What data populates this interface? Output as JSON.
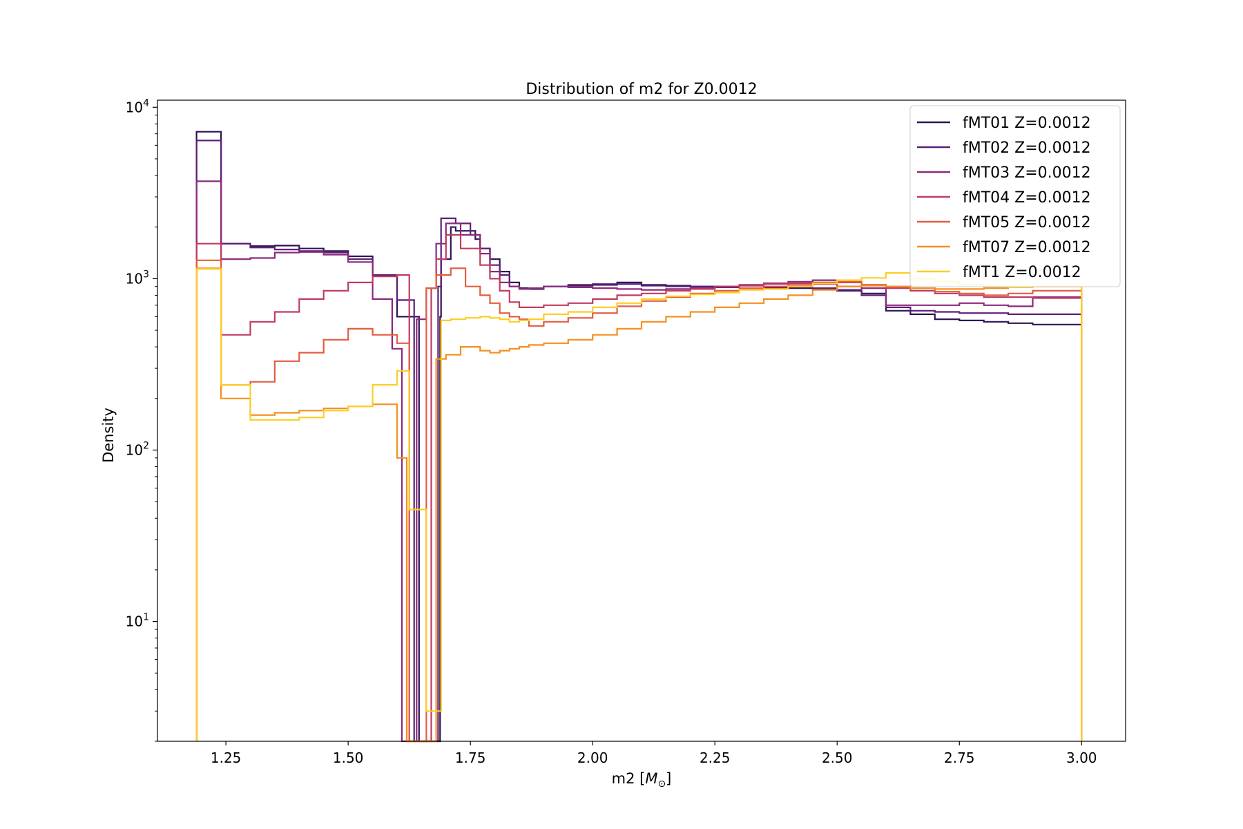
{
  "chart_data": {
    "type": "step-histogram",
    "title": "Distribution of m2 for Z0.0012",
    "xlabel": "m2 [",
    "xlabel_symbol": "M",
    "xlabel_subscript": "⊙",
    "xlabel_close": "]",
    "ylabel": "Density",
    "yscale": "log",
    "xlim": [
      1.11,
      3.09
    ],
    "ylim": [
      2,
      11000
    ],
    "x_ticks": [
      1.25,
      1.5,
      1.75,
      2.0,
      2.25,
      2.5,
      2.75,
      3.0
    ],
    "x_tick_labels": [
      "1.25",
      "1.50",
      "1.75",
      "2.00",
      "2.25",
      "2.50",
      "2.75",
      "3.00"
    ],
    "y_ticks": [
      10,
      100,
      1000,
      10000
    ],
    "y_tick_base": "10",
    "y_tick_exponents": [
      "1",
      "2",
      "3",
      "4"
    ],
    "legend_position": "top-right",
    "series": [
      {
        "name": "fMT01  Z=0.0012",
        "color": "#2d1554",
        "bins": [
          [
            1.24,
            7200
          ],
          [
            1.3,
            1600
          ],
          [
            1.35,
            1550
          ],
          [
            1.4,
            1560
          ],
          [
            1.45,
            1500
          ],
          [
            1.5,
            1450
          ],
          [
            1.55,
            1350
          ],
          [
            1.6,
            1050
          ],
          [
            1.645,
            600
          ],
          [
            1.66,
            2.0
          ],
          [
            1.688,
            2.0
          ],
          [
            1.69,
            600
          ],
          [
            1.71,
            1300
          ],
          [
            1.72,
            2000
          ],
          [
            1.76,
            1900
          ],
          [
            1.77,
            1700
          ],
          [
            1.79,
            1500
          ],
          [
            1.81,
            1300
          ],
          [
            1.83,
            1100
          ],
          [
            1.85,
            950
          ],
          [
            1.87,
            880
          ],
          [
            1.9,
            870
          ],
          [
            1.95,
            900
          ],
          [
            2.0,
            910
          ],
          [
            2.05,
            920
          ],
          [
            2.1,
            950
          ],
          [
            2.15,
            920
          ],
          [
            2.2,
            910
          ],
          [
            2.25,
            900
          ],
          [
            2.3,
            900
          ],
          [
            2.35,
            910
          ],
          [
            2.4,
            890
          ],
          [
            2.45,
            880
          ],
          [
            2.5,
            870
          ],
          [
            2.55,
            850
          ],
          [
            2.6,
            820
          ],
          [
            2.65,
            650
          ],
          [
            2.7,
            620
          ],
          [
            2.75,
            580
          ],
          [
            2.8,
            570
          ],
          [
            2.85,
            560
          ],
          [
            2.9,
            550
          ],
          [
            2.95,
            540
          ],
          [
            3.0,
            540
          ]
        ]
      },
      {
        "name": "fMT02  Z=0.0012",
        "color": "#5c1f79",
        "bins": [
          [
            1.24,
            6400
          ],
          [
            1.3,
            1600
          ],
          [
            1.35,
            1520
          ],
          [
            1.4,
            1480
          ],
          [
            1.45,
            1450
          ],
          [
            1.5,
            1420
          ],
          [
            1.55,
            1300
          ],
          [
            1.6,
            1050
          ],
          [
            1.635,
            750
          ],
          [
            1.66,
            2.0
          ],
          [
            1.684,
            2.0
          ],
          [
            1.69,
            900
          ],
          [
            1.72,
            2250
          ],
          [
            1.75,
            2100
          ],
          [
            1.77,
            1800
          ],
          [
            1.79,
            1500
          ],
          [
            1.81,
            1200
          ],
          [
            1.83,
            1050
          ],
          [
            1.85,
            900
          ],
          [
            1.87,
            870
          ],
          [
            1.9,
            880
          ],
          [
            1.95,
            900
          ],
          [
            2.0,
            920
          ],
          [
            2.05,
            930
          ],
          [
            2.1,
            930
          ],
          [
            2.15,
            910
          ],
          [
            2.2,
            900
          ],
          [
            2.25,
            900
          ],
          [
            2.3,
            890
          ],
          [
            2.35,
            880
          ],
          [
            2.4,
            880
          ],
          [
            2.45,
            890
          ],
          [
            2.5,
            880
          ],
          [
            2.55,
            860
          ],
          [
            2.6,
            800
          ],
          [
            2.65,
            680
          ],
          [
            2.7,
            650
          ],
          [
            2.75,
            640
          ],
          [
            2.8,
            630
          ],
          [
            2.85,
            630
          ],
          [
            2.9,
            620
          ],
          [
            2.95,
            620
          ],
          [
            3.0,
            620
          ]
        ]
      },
      {
        "name": "fMT03  Z=0.0012",
        "color": "#8b2a7a",
        "bins": [
          [
            1.24,
            3700
          ],
          [
            1.3,
            1300
          ],
          [
            1.35,
            1320
          ],
          [
            1.4,
            1420
          ],
          [
            1.45,
            1430
          ],
          [
            1.5,
            1380
          ],
          [
            1.55,
            1250
          ],
          [
            1.59,
            760
          ],
          [
            1.61,
            390
          ],
          [
            1.64,
            2.0
          ],
          [
            1.66,
            580
          ],
          [
            1.68,
            880
          ],
          [
            1.7,
            1600
          ],
          [
            1.73,
            2100
          ],
          [
            1.77,
            1800
          ],
          [
            1.79,
            1400
          ],
          [
            1.81,
            1100
          ],
          [
            1.83,
            950
          ],
          [
            1.85,
            900
          ],
          [
            1.87,
            870
          ],
          [
            1.9,
            880
          ],
          [
            1.95,
            900
          ],
          [
            2.0,
            890
          ],
          [
            2.05,
            880
          ],
          [
            2.1,
            870
          ],
          [
            2.15,
            860
          ],
          [
            2.2,
            870
          ],
          [
            2.25,
            880
          ],
          [
            2.3,
            900
          ],
          [
            2.35,
            920
          ],
          [
            2.4,
            940
          ],
          [
            2.45,
            960
          ],
          [
            2.5,
            980
          ],
          [
            2.55,
            900
          ],
          [
            2.6,
            880
          ],
          [
            2.65,
            700
          ],
          [
            2.7,
            700
          ],
          [
            2.75,
            700
          ],
          [
            2.8,
            720
          ],
          [
            2.85,
            700
          ],
          [
            2.9,
            690
          ],
          [
            2.95,
            780
          ],
          [
            3.0,
            780
          ]
        ]
      },
      {
        "name": "fMT04  Z=0.0012",
        "color": "#c13b61",
        "bins": [
          [
            1.24,
            1600
          ],
          [
            1.3,
            470
          ],
          [
            1.35,
            560
          ],
          [
            1.4,
            640
          ],
          [
            1.45,
            760
          ],
          [
            1.5,
            850
          ],
          [
            1.55,
            950
          ],
          [
            1.6,
            1030
          ],
          [
            1.625,
            1050
          ],
          [
            1.65,
            2.0
          ],
          [
            1.67,
            2.0
          ],
          [
            1.68,
            880
          ],
          [
            1.7,
            1300
          ],
          [
            1.73,
            1800
          ],
          [
            1.77,
            1500
          ],
          [
            1.79,
            1200
          ],
          [
            1.81,
            1000
          ],
          [
            1.83,
            850
          ],
          [
            1.85,
            730
          ],
          [
            1.87,
            680
          ],
          [
            1.9,
            680
          ],
          [
            1.95,
            700
          ],
          [
            2.0,
            720
          ],
          [
            2.05,
            760
          ],
          [
            2.1,
            800
          ],
          [
            2.15,
            820
          ],
          [
            2.2,
            850
          ],
          [
            2.25,
            870
          ],
          [
            2.3,
            900
          ],
          [
            2.35,
            910
          ],
          [
            2.4,
            930
          ],
          [
            2.45,
            940
          ],
          [
            2.5,
            950
          ],
          [
            2.55,
            950
          ],
          [
            2.6,
            920
          ],
          [
            2.65,
            880
          ],
          [
            2.7,
            850
          ],
          [
            2.75,
            820
          ],
          [
            2.8,
            800
          ],
          [
            2.85,
            780
          ],
          [
            2.9,
            780
          ],
          [
            2.95,
            770
          ],
          [
            3.0,
            770
          ]
        ]
      },
      {
        "name": "fMT05  Z=0.0012",
        "color": "#e25d40",
        "bins": [
          [
            1.24,
            1280
          ],
          [
            1.3,
            240
          ],
          [
            1.35,
            250
          ],
          [
            1.4,
            330
          ],
          [
            1.45,
            370
          ],
          [
            1.5,
            440
          ],
          [
            1.55,
            510
          ],
          [
            1.6,
            470
          ],
          [
            1.625,
            420
          ],
          [
            1.64,
            2.0
          ],
          [
            1.66,
            2.0
          ],
          [
            1.68,
            880
          ],
          [
            1.71,
            1050
          ],
          [
            1.74,
            1150
          ],
          [
            1.77,
            900
          ],
          [
            1.79,
            800
          ],
          [
            1.81,
            720
          ],
          [
            1.83,
            630
          ],
          [
            1.85,
            600
          ],
          [
            1.87,
            580
          ],
          [
            1.9,
            530
          ],
          [
            1.95,
            560
          ],
          [
            2.0,
            590
          ],
          [
            2.05,
            630
          ],
          [
            2.1,
            690
          ],
          [
            2.15,
            740
          ],
          [
            2.2,
            780
          ],
          [
            2.25,
            820
          ],
          [
            2.3,
            850
          ],
          [
            2.35,
            880
          ],
          [
            2.4,
            900
          ],
          [
            2.45,
            920
          ],
          [
            2.5,
            930
          ],
          [
            2.55,
            960
          ],
          [
            2.6,
            920
          ],
          [
            2.65,
            900
          ],
          [
            2.7,
            880
          ],
          [
            2.75,
            840
          ],
          [
            2.8,
            820
          ],
          [
            2.85,
            800
          ],
          [
            2.9,
            820
          ],
          [
            2.95,
            850
          ],
          [
            3.0,
            850
          ]
        ]
      },
      {
        "name": "fMT07  Z=0.0012",
        "color": "#f68f1f",
        "bins": [
          [
            1.24,
            1150
          ],
          [
            1.3,
            200
          ],
          [
            1.35,
            160
          ],
          [
            1.4,
            165
          ],
          [
            1.45,
            170
          ],
          [
            1.5,
            175
          ],
          [
            1.55,
            180
          ],
          [
            1.6,
            185
          ],
          [
            1.62,
            90
          ],
          [
            1.64,
            2.0
          ],
          [
            1.66,
            2.0
          ],
          [
            1.68,
            2.0
          ],
          [
            1.7,
            340
          ],
          [
            1.73,
            360
          ],
          [
            1.77,
            400
          ],
          [
            1.79,
            380
          ],
          [
            1.81,
            370
          ],
          [
            1.83,
            380
          ],
          [
            1.85,
            390
          ],
          [
            1.87,
            400
          ],
          [
            1.9,
            410
          ],
          [
            1.95,
            420
          ],
          [
            2.0,
            440
          ],
          [
            2.05,
            470
          ],
          [
            2.1,
            510
          ],
          [
            2.15,
            560
          ],
          [
            2.2,
            600
          ],
          [
            2.25,
            640
          ],
          [
            2.3,
            680
          ],
          [
            2.35,
            720
          ],
          [
            2.4,
            760
          ],
          [
            2.45,
            800
          ],
          [
            2.5,
            860
          ],
          [
            2.55,
            900
          ],
          [
            2.6,
            910
          ],
          [
            2.65,
            900
          ],
          [
            2.7,
            880
          ],
          [
            2.75,
            870
          ],
          [
            2.8,
            870
          ],
          [
            2.85,
            880
          ],
          [
            2.9,
            890
          ],
          [
            2.95,
            900
          ],
          [
            3.0,
            900
          ]
        ]
      },
      {
        "name": "fMT1  Z=0.0012",
        "color": "#fcce25",
        "bins": [
          [
            1.24,
            1140
          ],
          [
            1.3,
            240
          ],
          [
            1.35,
            150
          ],
          [
            1.4,
            150
          ],
          [
            1.45,
            155
          ],
          [
            1.5,
            170
          ],
          [
            1.55,
            180
          ],
          [
            1.6,
            240
          ],
          [
            1.625,
            290
          ],
          [
            1.645,
            45
          ],
          [
            1.66,
            45
          ],
          [
            1.675,
            3.0
          ],
          [
            1.69,
            3.0
          ],
          [
            1.71,
            570
          ],
          [
            1.74,
            580
          ],
          [
            1.77,
            590
          ],
          [
            1.79,
            600
          ],
          [
            1.81,
            590
          ],
          [
            1.83,
            580
          ],
          [
            1.85,
            560
          ],
          [
            1.87,
            570
          ],
          [
            1.9,
            580
          ],
          [
            1.95,
            620
          ],
          [
            2.0,
            640
          ],
          [
            2.05,
            680
          ],
          [
            2.1,
            720
          ],
          [
            2.15,
            760
          ],
          [
            2.2,
            790
          ],
          [
            2.25,
            810
          ],
          [
            2.3,
            830
          ],
          [
            2.35,
            860
          ],
          [
            2.4,
            870
          ],
          [
            2.45,
            900
          ],
          [
            2.5,
            940
          ],
          [
            2.55,
            980
          ],
          [
            2.6,
            1010
          ],
          [
            2.65,
            1080
          ],
          [
            2.7,
            1000
          ],
          [
            2.75,
            960
          ],
          [
            2.8,
            920
          ],
          [
            2.85,
            900
          ],
          [
            2.9,
            890
          ],
          [
            2.95,
            900
          ],
          [
            3.0,
            900
          ]
        ]
      }
    ]
  }
}
